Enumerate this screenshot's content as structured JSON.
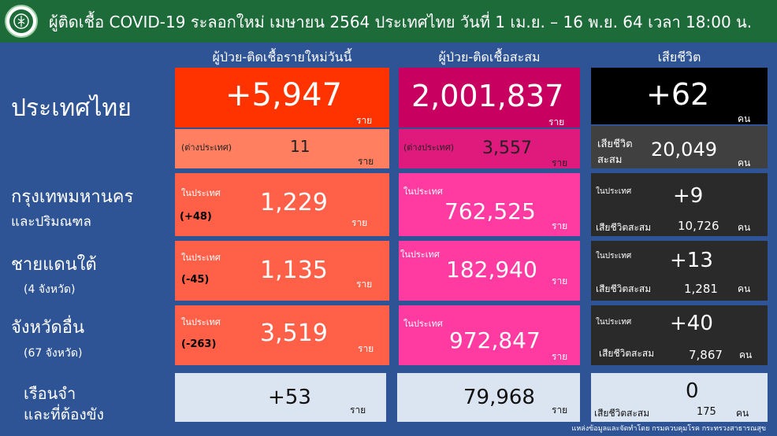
{
  "header": {
    "title": "ผู้ติดเชื้อ COVID-19 ระลอกใหม่ เมษายน 2564 ประเทศไทย วันที่ 1 เม.ย. – 16 พ.ย. 64 เวลา 18:00 น."
  },
  "columns": {
    "new_cases": "ผู้ป่วย-ติดเชื้อรายใหม่วันนี้",
    "cumulative": "ผู้ป่วย-ติดเชื้อสะสม",
    "deaths": "เสียชีวิต"
  },
  "units": {
    "rai": "ราย",
    "khon": "คน"
  },
  "thailand": {
    "label": "ประเทศไทย",
    "new": "+5,947",
    "new_abroad_label": "(ต่างประเทศ)",
    "new_abroad": "11",
    "cumulative": "2,001,837",
    "cum_abroad_label": "(ต่างประเทศ)",
    "cum_abroad": "3,557",
    "deaths_new": "+62",
    "deaths_cum_label1": "เสียชีวิต",
    "deaths_cum_label2": "สะสม",
    "deaths_cum": "20,049"
  },
  "bangkok": {
    "label1": "กรุงเทพมหานคร",
    "label2": "และปริมณฑล",
    "in_country": "ในประเทศ",
    "change": "(+48)",
    "new": "1,229",
    "cumulative": "762,525",
    "deaths_new": "+9",
    "deaths_cum_label": "เสียชีวิตสะสม",
    "deaths_cum": "10,726"
  },
  "south": {
    "label1": "ชายแดนใต้",
    "label2": "(4 จังหวัด)",
    "in_country": "ในประเทศ",
    "change": "(-45)",
    "new": "1,135",
    "cumulative": "182,940",
    "deaths_new": "+13",
    "deaths_cum_label": "เสียชีวิตสะสม",
    "deaths_cum": "1,281"
  },
  "other": {
    "label1": "จังหวัดอื่น",
    "label2": "(67 จังหวัด)",
    "in_country": "ในประเทศ",
    "change": "(-263)",
    "new": "3,519",
    "cumulative": "972,847",
    "deaths_new": "+40",
    "deaths_cum_label": "เสียชีวิตสะสม",
    "deaths_cum": "7,867"
  },
  "prison": {
    "label1": "เรือนจำ",
    "label2": "และที่ต้องขัง",
    "new": "+53",
    "cumulative": "79,968",
    "deaths_new": "0",
    "deaths_cum_label": "เสียชีวิตสะสม",
    "deaths_cum": "175"
  },
  "footer": {
    "source": "แหล่งข้อมูลและจัดทำโดย กรมควบคุมโรค กระทรวงสาธารณสุข"
  },
  "colors": {
    "background": "#2f5496",
    "header": "#1e6b3a",
    "new_cases": "#ff3300",
    "cumulative": "#c8005f",
    "deaths": "#000000"
  }
}
